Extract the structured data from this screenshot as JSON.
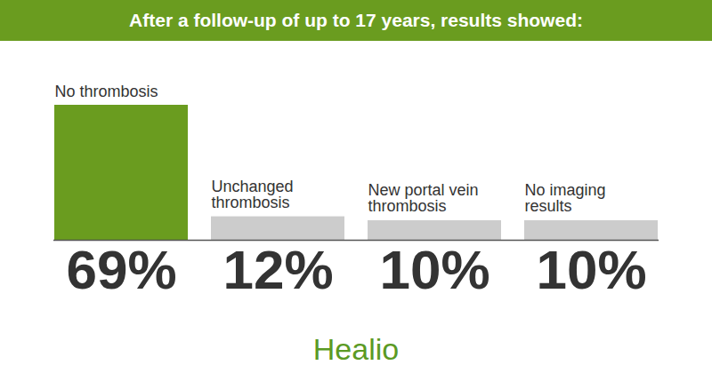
{
  "chart_data": {
    "type": "bar",
    "title": "After a follow-up of up to 17 years, results showed:",
    "categories": [
      "No thrombosis",
      "Unchanged thrombosis",
      "New portal vein thrombosis",
      "No imaging results"
    ],
    "values": [
      69,
      12,
      10,
      10
    ],
    "value_labels": [
      "69%",
      "12%",
      "10%",
      "10%"
    ],
    "colors": [
      "#6a9c1f",
      "#cccccc",
      "#cccccc",
      "#cccccc"
    ],
    "data_labels": true,
    "tick_labels": false,
    "caption": "Healio"
  }
}
